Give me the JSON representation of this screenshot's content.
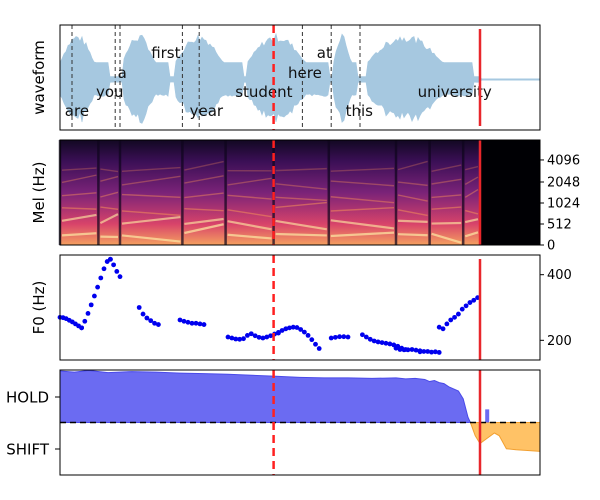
{
  "colors": {
    "waveform": "#a6c8e0",
    "boundary": "#333333",
    "current_time": "#ff2020",
    "end_marker": "#e8262b",
    "f0_points": "#0000ee",
    "hold_fill": "#6b6bf2",
    "hold_stroke": "#4a4ae8",
    "shift_fill": "#ffc266",
    "shift_stroke": "#f2a030",
    "threshold": "#000000"
  },
  "chart_data": [
    {
      "type": "area",
      "ylabel": "waveform",
      "words": [
        {
          "text": "are",
          "x": 0.01,
          "row": "low"
        },
        {
          "text": "you",
          "x": 0.075,
          "row": "mid"
        },
        {
          "text": "a",
          "x": 0.12,
          "row": "upper"
        },
        {
          "text": "first",
          "x": 0.19,
          "row": "high"
        },
        {
          "text": "year",
          "x": 0.27,
          "row": "low"
        },
        {
          "text": "student",
          "x": 0.365,
          "row": "mid"
        },
        {
          "text": "here",
          "x": 0.475,
          "row": "upper"
        },
        {
          "text": "at",
          "x": 0.535,
          "row": "high"
        },
        {
          "text": "this",
          "x": 0.595,
          "row": "low"
        },
        {
          "text": "university",
          "x": 0.745,
          "row": "mid"
        }
      ],
      "word_boundaries": [
        0.025,
        0.115,
        0.125,
        0.255,
        0.29,
        0.505,
        0.565,
        0.625
      ],
      "current_time": 0.445,
      "end_time": 0.875
    },
    {
      "type": "heatmap",
      "ylabel": "Mel (Hz)",
      "yticks": [
        {
          "label": "0",
          "frac": 0.0
        },
        {
          "label": "512",
          "frac": 0.2
        },
        {
          "label": "1024",
          "frac": 0.4
        },
        {
          "label": "2048",
          "frac": 0.6
        },
        {
          "label": "4096",
          "frac": 0.81
        }
      ],
      "onsets": [
        0.0,
        0.08,
        0.125,
        0.255,
        0.345,
        0.445,
        0.56,
        0.7,
        0.77,
        0.84
      ],
      "current_time": 0.445,
      "end_time": 0.875
    },
    {
      "type": "scatter",
      "ylabel": "F0 (Hz)",
      "ylim": [
        140,
        460
      ],
      "yticks": [
        200,
        400
      ],
      "segments": [
        {
          "x0": 0.0,
          "x1": 0.045,
          "y": [
            270,
            269,
            266,
            261,
            256,
            250,
            244,
            238
          ]
        },
        {
          "x0": 0.045,
          "x1": 0.105,
          "y": [
            238,
            258,
            282,
            308,
            335,
            362,
            390,
            418,
            440,
            447
          ]
        },
        {
          "x0": 0.105,
          "x1": 0.125,
          "y": [
            447,
            430,
            410,
            394
          ]
        },
        {
          "x0": 0.165,
          "x1": 0.205,
          "y": [
            300,
            280,
            268,
            260,
            252,
            248
          ]
        },
        {
          "x0": 0.25,
          "x1": 0.3,
          "y": [
            262,
            258,
            255,
            252,
            252,
            250,
            248
          ]
        },
        {
          "x0": 0.35,
          "x1": 0.455,
          "y": [
            210,
            207,
            204,
            203,
            205,
            215,
            220,
            214,
            209,
            207,
            210,
            214,
            219,
            222
          ]
        },
        {
          "x0": 0.455,
          "x1": 0.54,
          "y": [
            224,
            230,
            235,
            238,
            240,
            239,
            233,
            225,
            215,
            202,
            188,
            175
          ]
        },
        {
          "x0": 0.565,
          "x1": 0.6,
          "y": [
            207,
            209,
            211,
            211,
            210
          ]
        },
        {
          "x0": 0.63,
          "x1": 0.72,
          "y": [
            217,
            210,
            203,
            198,
            195,
            193,
            191,
            189,
            186,
            182,
            176,
            172
          ]
        },
        {
          "x0": 0.7,
          "x1": 0.75,
          "y": [
            176,
            172,
            171,
            171,
            172,
            170,
            168
          ]
        },
        {
          "x0": 0.75,
          "x1": 0.79,
          "y": [
            165,
            166,
            166,
            164,
            165,
            163
          ]
        },
        {
          "x0": 0.79,
          "x1": 0.87,
          "y": [
            240,
            235,
            250,
            262,
            270,
            280,
            295,
            305,
            315,
            322,
            330
          ]
        }
      ],
      "current_time": 0.445,
      "end_time": 0.875
    },
    {
      "type": "area",
      "yticks": [
        "HOLD",
        "SHIFT"
      ],
      "ylim": [
        -1,
        1
      ],
      "hold": [
        {
          "x": 0.0,
          "y": 0.98
        },
        {
          "x": 0.03,
          "y": 0.96
        },
        {
          "x": 0.06,
          "y": 0.99
        },
        {
          "x": 0.1,
          "y": 0.95
        },
        {
          "x": 0.15,
          "y": 0.97
        },
        {
          "x": 0.2,
          "y": 0.96
        },
        {
          "x": 0.25,
          "y": 0.94
        },
        {
          "x": 0.3,
          "y": 0.93
        },
        {
          "x": 0.35,
          "y": 0.92
        },
        {
          "x": 0.4,
          "y": 0.9
        },
        {
          "x": 0.45,
          "y": 0.88
        },
        {
          "x": 0.5,
          "y": 0.86
        },
        {
          "x": 0.55,
          "y": 0.85
        },
        {
          "x": 0.6,
          "y": 0.85
        },
        {
          "x": 0.65,
          "y": 0.84
        },
        {
          "x": 0.7,
          "y": 0.85
        },
        {
          "x": 0.72,
          "y": 0.83
        },
        {
          "x": 0.74,
          "y": 0.84
        },
        {
          "x": 0.76,
          "y": 0.82
        },
        {
          "x": 0.77,
          "y": 0.78
        },
        {
          "x": 0.78,
          "y": 0.8
        },
        {
          "x": 0.79,
          "y": 0.76
        },
        {
          "x": 0.8,
          "y": 0.74
        },
        {
          "x": 0.81,
          "y": 0.68
        },
        {
          "x": 0.83,
          "y": 0.6
        },
        {
          "x": 0.84,
          "y": 0.45
        },
        {
          "x": 0.85,
          "y": 0.1
        },
        {
          "x": 0.855,
          "y": 0.0
        }
      ],
      "shift": [
        {
          "x": 0.855,
          "y": 0.0
        },
        {
          "x": 0.865,
          "y": -0.25
        },
        {
          "x": 0.875,
          "y": -0.4
        },
        {
          "x": 0.89,
          "y": -0.3
        },
        {
          "x": 0.905,
          "y": -0.2
        },
        {
          "x": 0.915,
          "y": -0.25
        },
        {
          "x": 0.93,
          "y": -0.5
        },
        {
          "x": 0.95,
          "y": -0.52
        },
        {
          "x": 0.97,
          "y": -0.53
        },
        {
          "x": 1.0,
          "y": -0.55
        }
      ],
      "spike": {
        "x": 0.89,
        "y": 0.25
      },
      "threshold": 0.0,
      "current_time": 0.445,
      "end_time": 0.875
    }
  ]
}
